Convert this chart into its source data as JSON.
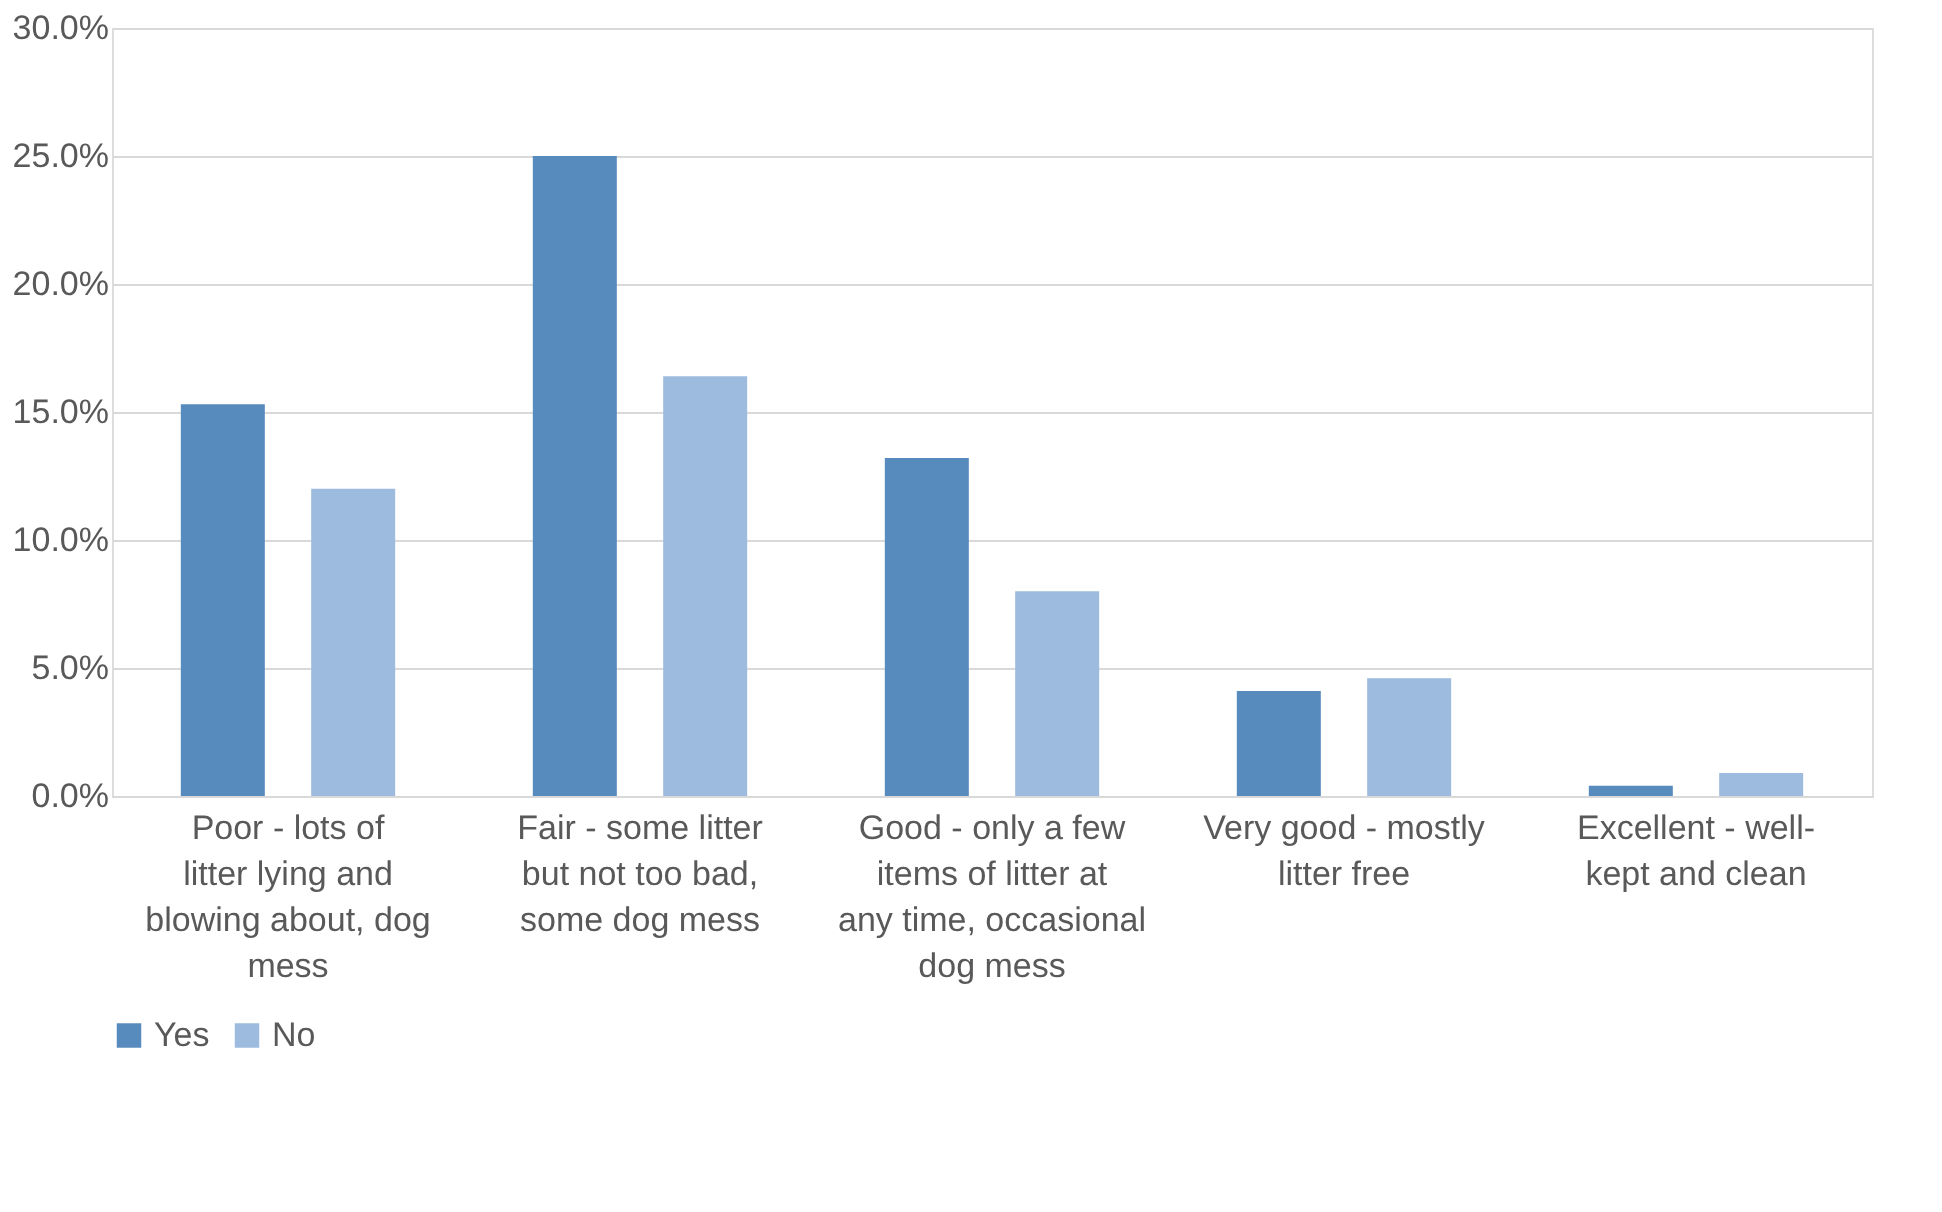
{
  "chart_data": {
    "type": "bar",
    "categories": [
      "Poor - lots of litter lying and blowing about, dog mess",
      "Fair - some litter but not too bad, some dog mess",
      "Good - only a few items of litter at any time, occasional dog mess",
      "Very good - mostly litter free",
      "Excellent - well-kept and clean"
    ],
    "series": [
      {
        "name": "Yes",
        "color": "#588bbd",
        "values": [
          15.3,
          25.0,
          13.2,
          4.1,
          0.4
        ]
      },
      {
        "name": "No",
        "color": "#9dbbde",
        "values": [
          12.0,
          16.4,
          8.0,
          4.6,
          0.9
        ]
      }
    ],
    "ylim": [
      0,
      30
    ],
    "yticks": [
      {
        "value": 0,
        "label": "0.0%"
      },
      {
        "value": 5,
        "label": "5.0%"
      },
      {
        "value": 10,
        "label": "10.0%"
      },
      {
        "value": 15,
        "label": "15.0%"
      },
      {
        "value": 20,
        "label": "20.0%"
      },
      {
        "value": 25,
        "label": "25.0%"
      },
      {
        "value": 30,
        "label": "30.0%"
      }
    ],
    "grid": "y",
    "legend": "bottom"
  }
}
